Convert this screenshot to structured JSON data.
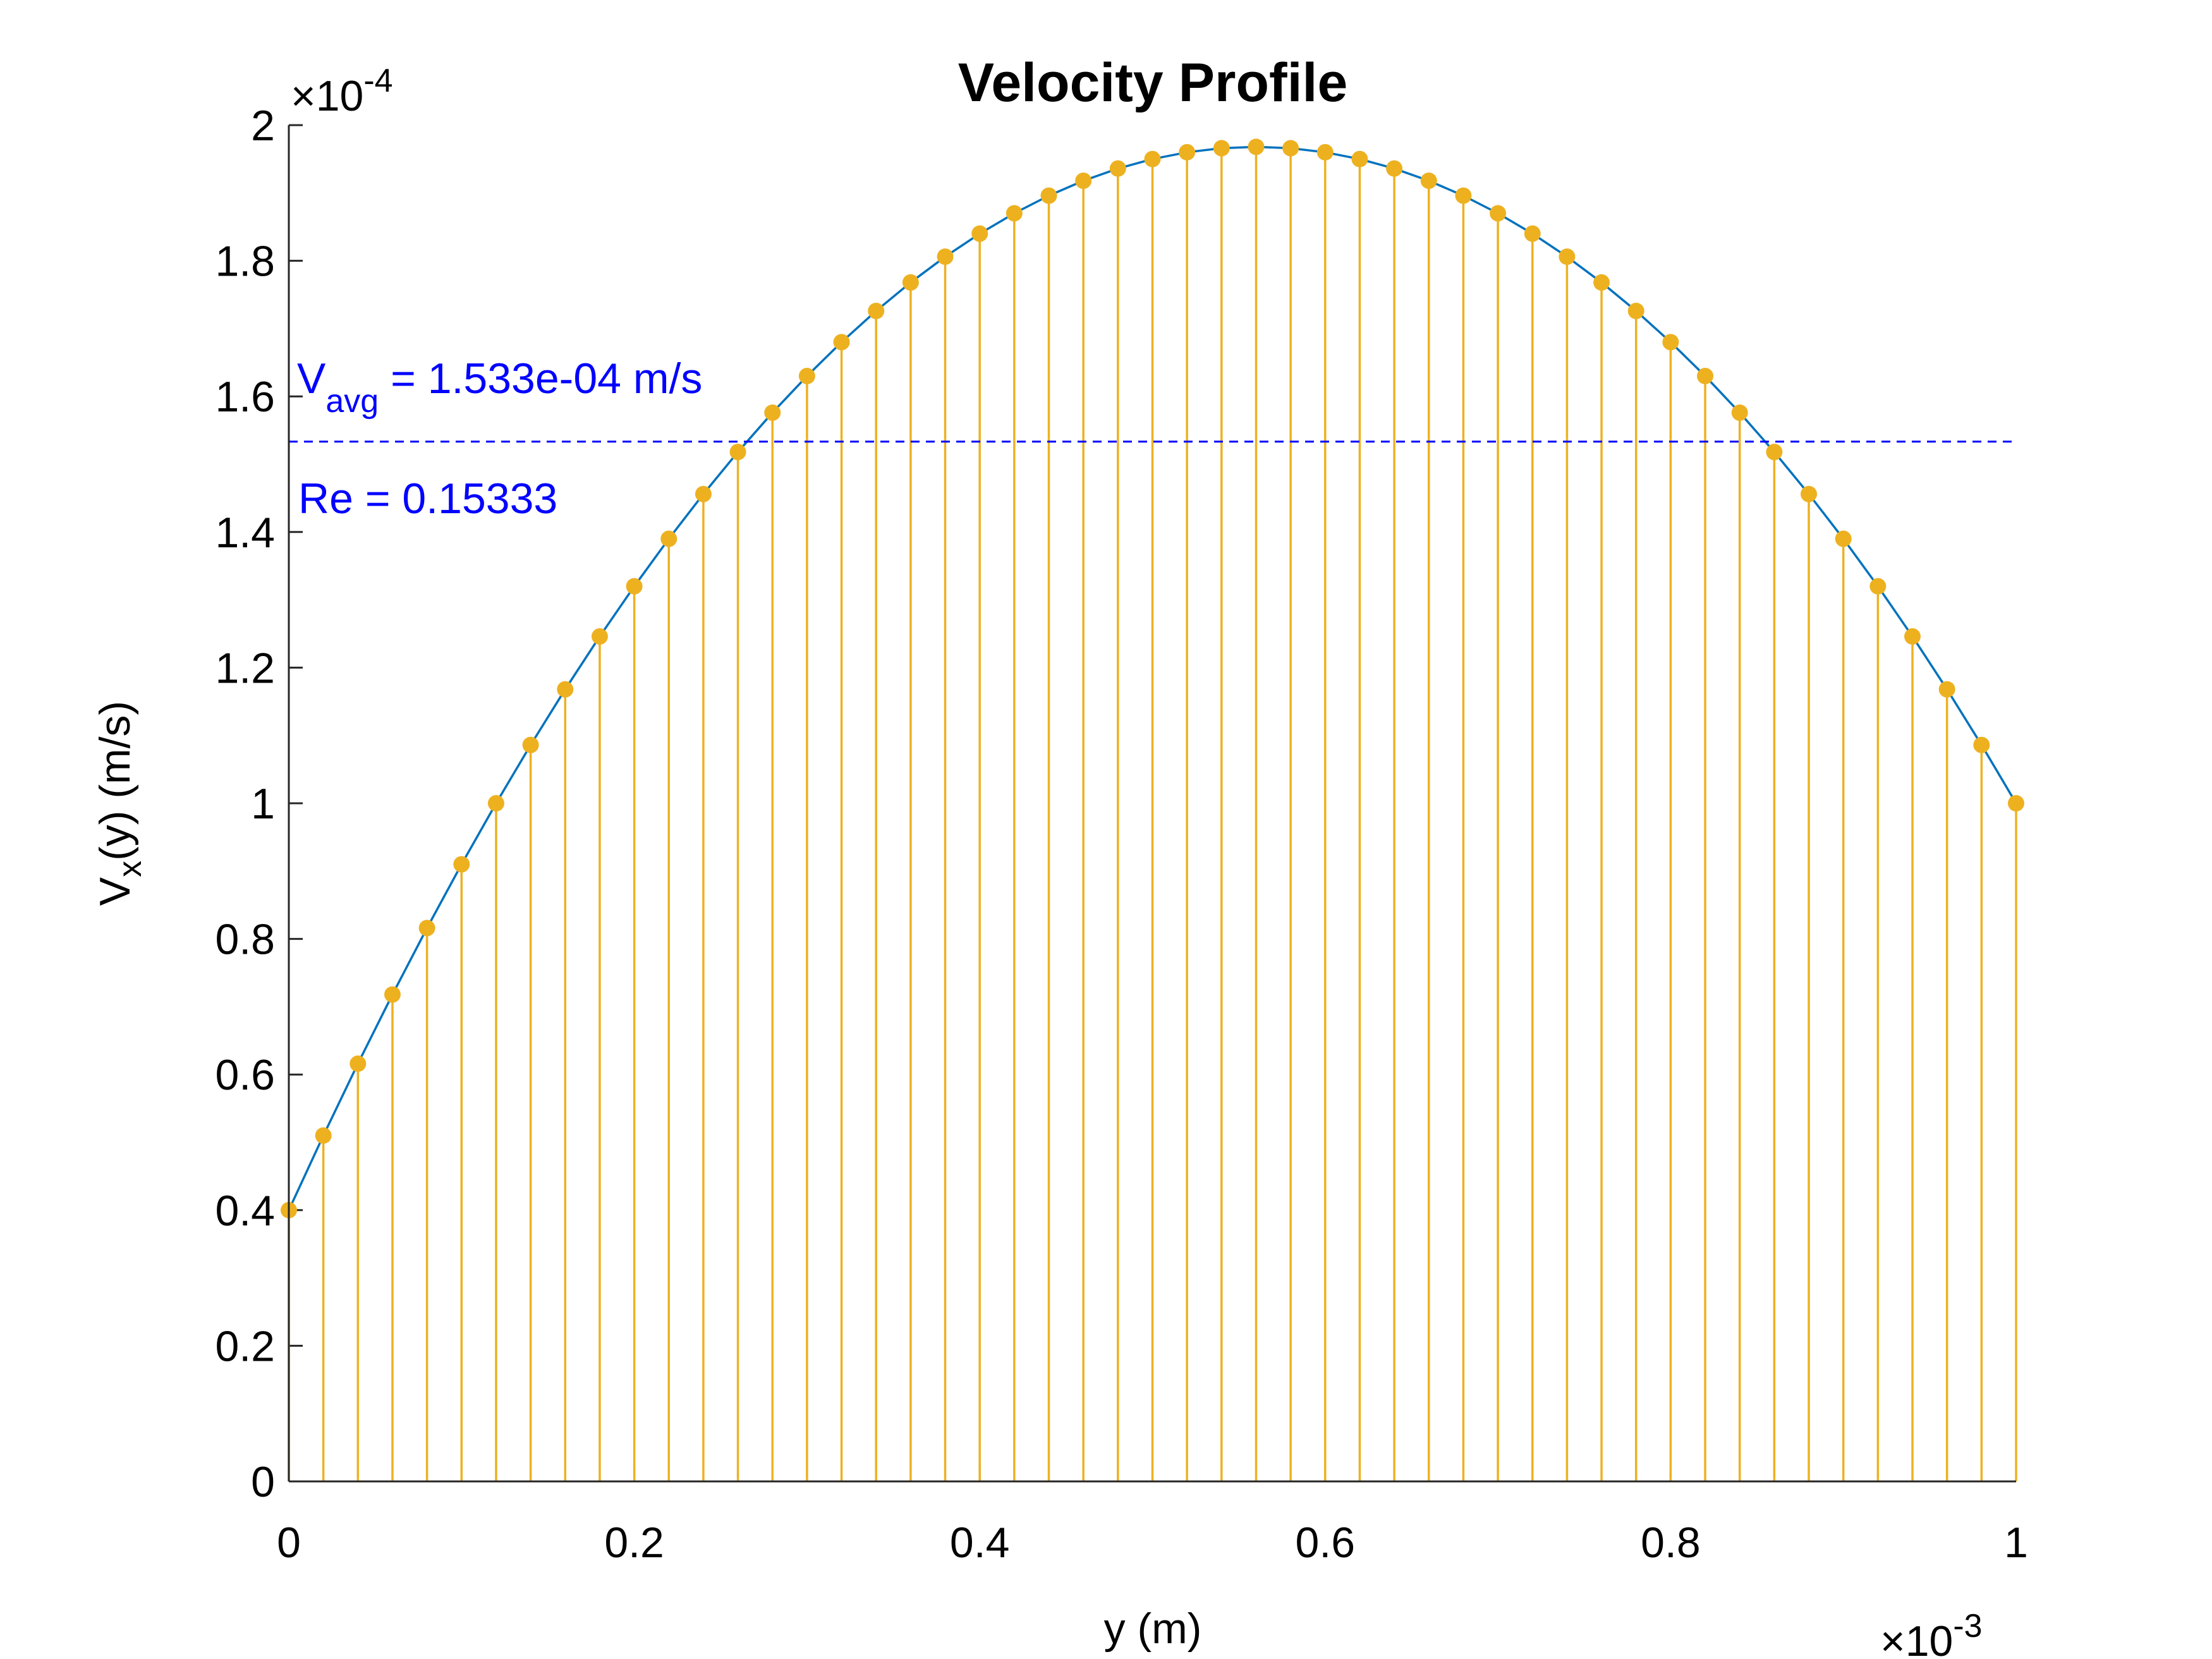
{
  "chart_data": {
    "type": "stem",
    "title": "Velocity Profile",
    "xlabel": "y (m)",
    "ylabel": {
      "main": "V",
      "sub": "x",
      "rest": "(y) (m/s)"
    },
    "x_multiplier": {
      "base": "×10",
      "exponent": "-3"
    },
    "y_multiplier": {
      "base": "×10",
      "exponent": "-4"
    },
    "x": [
      0,
      0.02,
      0.04,
      0.06,
      0.08,
      0.1,
      0.12,
      0.14,
      0.16,
      0.18,
      0.2,
      0.22,
      0.24,
      0.26,
      0.28,
      0.3,
      0.32,
      0.34,
      0.36,
      0.38,
      0.4,
      0.42,
      0.44,
      0.46,
      0.48,
      0.5,
      0.52,
      0.54,
      0.56,
      0.58,
      0.6,
      0.62,
      0.64,
      0.66,
      0.68,
      0.7,
      0.72,
      0.74,
      0.76,
      0.78,
      0.8,
      0.82,
      0.84,
      0.86,
      0.88,
      0.9,
      0.92,
      0.94,
      0.96,
      0.98,
      1
    ],
    "values": [
      0.4,
      0.51,
      0.616,
      0.718,
      0.816,
      0.91,
      1.0,
      1.086,
      1.168,
      1.246,
      1.32,
      1.39,
      1.456,
      1.518,
      1.576,
      1.63,
      1.68,
      1.726,
      1.768,
      1.806,
      1.84,
      1.87,
      1.896,
      1.918,
      1.936,
      1.95,
      1.96,
      1.966,
      1.968,
      1.966,
      1.96,
      1.95,
      1.936,
      1.918,
      1.896,
      1.87,
      1.84,
      1.806,
      1.768,
      1.726,
      1.68,
      1.63,
      1.576,
      1.518,
      1.456,
      1.39,
      1.32,
      1.246,
      1.168,
      1.086,
      1.0
    ],
    "line_color": "#0072bd",
    "stem_color": "#edb120",
    "avg_line": 1.5333,
    "avg_color": "#0000ff",
    "annotations": {
      "vavg": {
        "main": "V",
        "sub": "avg",
        "rest": " = 1.533e-04 m/s"
      },
      "re": "Re = 0.15333"
    },
    "xlim": [
      0,
      1
    ],
    "ylim": [
      0,
      2
    ],
    "xticks": [
      0,
      0.2,
      0.4,
      0.6,
      0.8,
      1
    ],
    "yticks": [
      0,
      0.2,
      0.4,
      0.6,
      0.8,
      1,
      1.2,
      1.4,
      1.6,
      1.8,
      2
    ]
  }
}
